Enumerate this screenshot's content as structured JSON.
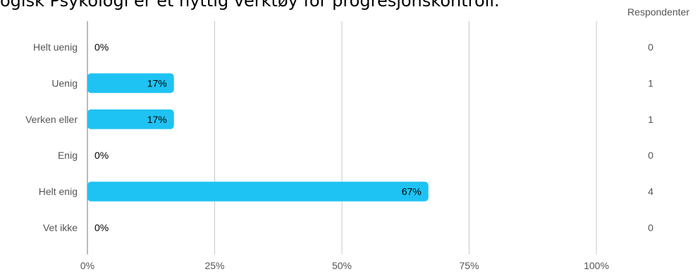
{
  "title": "ogisk Psykologi er et nyttig verktøy for progresjonskontroll.",
  "respondents_header": "Respondenter",
  "colors": {
    "bar": "#1fc3f3",
    "grid": "#c8c8c8",
    "text": "#333333",
    "label": "#555555",
    "axis": "#777777"
  },
  "chart_data": {
    "type": "bar",
    "orientation": "horizontal",
    "title": "ogisk Psykologi er et nyttig verktøy for progresjonskontroll.",
    "categories": [
      "Helt uenig",
      "Uenig",
      "Verken eller",
      "Enig",
      "Helt enig",
      "Vet ikke"
    ],
    "values": [
      0,
      17,
      17,
      0,
      67,
      0
    ],
    "value_labels": [
      "0%",
      "17%",
      "17%",
      "0%",
      "67%",
      "0%"
    ],
    "respondents": [
      0,
      1,
      1,
      0,
      4,
      0
    ],
    "xticks": [
      "0%",
      "25%",
      "50%",
      "75%",
      "100%"
    ],
    "xlim": [
      0,
      100
    ],
    "grid": true,
    "xlabel": "",
    "ylabel": ""
  }
}
